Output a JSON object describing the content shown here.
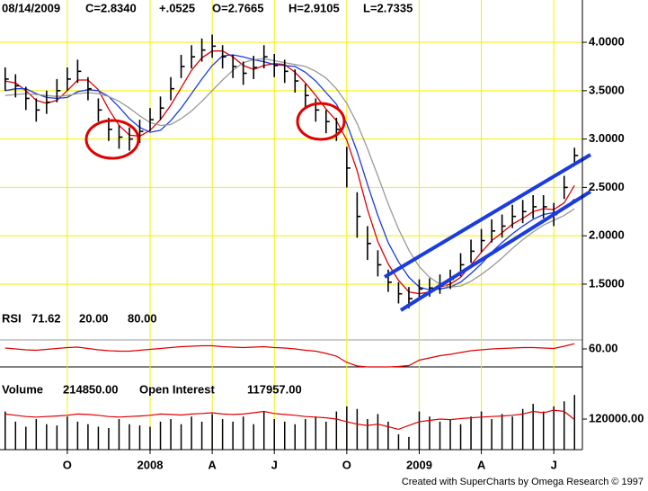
{
  "chart_data": [
    {
      "type": "ohlc",
      "header": [
        "08/14/2009",
        "C=2.8340",
        "+.0525",
        "O=2.7665",
        "H=2.9105",
        "L=2.7335"
      ],
      "header_colors": [
        "#000000",
        "#000000",
        "#00c000",
        "#000000",
        "#000000",
        "#000000"
      ],
      "color": "#000000",
      "high": [
        3.74,
        3.67,
        3.54,
        3.42,
        3.5,
        3.62,
        3.74,
        3.82,
        3.64,
        3.42,
        3.22,
        3.14,
        3.12,
        3.2,
        3.32,
        3.44,
        3.64,
        3.87,
        3.97,
        4.04,
        4.08,
        3.97,
        3.87,
        3.8,
        3.86,
        3.97,
        3.88,
        3.82,
        3.72,
        3.57,
        3.42,
        3.3,
        3.22,
        2.92,
        2.45,
        2.1,
        1.85,
        1.65,
        1.52,
        1.47,
        1.55,
        1.56,
        1.6,
        1.65,
        1.82,
        1.96,
        2.07,
        2.17,
        2.22,
        2.32,
        2.37,
        2.42,
        2.42,
        2.34,
        2.62,
        2.91
      ],
      "low": [
        3.5,
        3.43,
        3.3,
        3.18,
        3.26,
        3.38,
        3.5,
        3.58,
        3.4,
        3.18,
        2.98,
        2.9,
        2.88,
        2.96,
        3.08,
        3.2,
        3.4,
        3.63,
        3.73,
        3.8,
        3.84,
        3.73,
        3.63,
        3.56,
        3.62,
        3.73,
        3.64,
        3.58,
        3.48,
        3.33,
        3.18,
        3.06,
        2.98,
        2.5,
        1.98,
        1.75,
        1.58,
        1.42,
        1.3,
        1.25,
        1.36,
        1.37,
        1.4,
        1.45,
        1.58,
        1.72,
        1.83,
        1.93,
        1.98,
        2.08,
        2.13,
        2.18,
        2.18,
        2.1,
        2.38,
        2.73
      ],
      "close": [
        3.62,
        3.55,
        3.42,
        3.3,
        3.38,
        3.5,
        3.62,
        3.7,
        3.52,
        3.3,
        3.1,
        3.02,
        3.0,
        3.08,
        3.2,
        3.32,
        3.52,
        3.75,
        3.85,
        3.92,
        3.96,
        3.85,
        3.75,
        3.68,
        3.74,
        3.85,
        3.76,
        3.7,
        3.6,
        3.45,
        3.3,
        3.18,
        3.1,
        2.7,
        2.2,
        1.92,
        1.7,
        1.52,
        1.4,
        1.35,
        1.45,
        1.46,
        1.5,
        1.55,
        1.7,
        1.84,
        1.95,
        2.05,
        2.1,
        2.2,
        2.25,
        2.3,
        2.3,
        2.22,
        2.5,
        2.83
      ],
      "moving_averages": [
        {
          "color": "#e00000",
          "values": [
            3.6,
            3.58,
            3.5,
            3.4,
            3.37,
            3.4,
            3.5,
            3.61,
            3.61,
            3.51,
            3.31,
            3.14,
            3.04,
            3.03,
            3.09,
            3.2,
            3.35,
            3.53,
            3.71,
            3.84,
            3.91,
            3.91,
            3.85,
            3.76,
            3.72,
            3.76,
            3.78,
            3.77,
            3.69,
            3.58,
            3.45,
            3.31,
            3.19,
            2.99,
            2.67,
            2.27,
            1.94,
            1.71,
            1.54,
            1.42,
            1.4,
            1.42,
            1.47,
            1.5,
            1.57,
            1.7,
            1.83,
            1.95,
            2.03,
            2.12,
            2.18,
            2.25,
            2.28,
            2.27,
            2.34,
            2.52
          ]
        },
        {
          "color": "#1a3ce0",
          "values": [
            3.5,
            3.52,
            3.52,
            3.47,
            3.43,
            3.42,
            3.43,
            3.49,
            3.51,
            3.5,
            3.44,
            3.33,
            3.21,
            3.12,
            3.07,
            3.09,
            3.19,
            3.32,
            3.47,
            3.62,
            3.76,
            3.86,
            3.87,
            3.85,
            3.82,
            3.8,
            3.77,
            3.76,
            3.75,
            3.69,
            3.6,
            3.48,
            3.36,
            3.16,
            2.87,
            2.53,
            2.21,
            1.93,
            1.73,
            1.57,
            1.47,
            1.44,
            1.45,
            1.47,
            1.52,
            1.61,
            1.71,
            1.83,
            1.93,
            2.02,
            2.1,
            2.17,
            2.22,
            2.24,
            2.28,
            2.38
          ]
        },
        {
          "color": "#999999",
          "values": [
            3.45,
            3.46,
            3.47,
            3.46,
            3.45,
            3.44,
            3.45,
            3.47,
            3.48,
            3.47,
            3.44,
            3.39,
            3.32,
            3.24,
            3.17,
            3.14,
            3.15,
            3.21,
            3.29,
            3.39,
            3.5,
            3.61,
            3.71,
            3.79,
            3.82,
            3.83,
            3.81,
            3.79,
            3.77,
            3.75,
            3.7,
            3.63,
            3.52,
            3.37,
            3.16,
            2.9,
            2.62,
            2.33,
            2.07,
            1.85,
            1.68,
            1.57,
            1.5,
            1.47,
            1.48,
            1.53,
            1.6,
            1.68,
            1.77,
            1.87,
            1.96,
            2.04,
            2.11,
            2.16,
            2.21,
            2.28
          ]
        }
      ],
      "ylim": [
        1.23,
        4.27
      ],
      "yticks": [
        {
          "value": 1.5,
          "label": "1.5000"
        },
        {
          "value": 2,
          "label": "2.0000"
        },
        {
          "value": 2.5,
          "label": "2.5000"
        },
        {
          "value": 3,
          "label": "3.0000"
        },
        {
          "value": 3.5,
          "label": "3.5000"
        },
        {
          "value": 4,
          "label": "4.0000"
        }
      ],
      "grid": true
    },
    {
      "type": "line",
      "title": "RSI",
      "current": {
        "value": 71.62,
        "label": "71.62"
      },
      "current_color": "#e00000",
      "levels": [
        {
          "value": 20,
          "label": "20.00",
          "color": "#000000"
        },
        {
          "value": 80,
          "label": "80.00",
          "color": "#999999"
        }
      ],
      "color": "#e00000",
      "values": [
        62,
        60,
        58,
        57,
        59,
        61,
        63,
        64,
        61,
        58,
        56,
        55,
        55,
        57,
        59,
        61,
        63,
        65,
        66,
        67,
        67,
        65,
        64,
        63,
        64,
        65,
        63,
        62,
        60,
        57,
        55,
        50,
        44,
        30,
        22,
        20,
        20,
        20,
        21,
        23,
        35,
        40,
        45,
        48,
        52,
        56,
        58,
        60,
        61,
        62,
        63,
        63,
        62,
        61,
        66,
        71.62
      ],
      "ylim": [
        -14,
        146
      ],
      "yticks": [
        {
          "value": 60,
          "label": "60.00"
        }
      ]
    },
    {
      "type": "bar",
      "title": "Volume",
      "current": {
        "value": 214850,
        "label": "214850.00"
      },
      "current_color": "#000000",
      "color": "#000000",
      "values": [
        150000,
        110000,
        90000,
        120000,
        100000,
        95000,
        130000,
        110000,
        100000,
        90000,
        85000,
        120000,
        100000,
        95000,
        90000,
        110000,
        120000,
        100000,
        130000,
        110000,
        140000,
        120000,
        110000,
        130000,
        100000,
        150000,
        120000,
        110000,
        100000,
        120000,
        130000,
        110000,
        150000,
        170000,
        160000,
        120000,
        140000,
        110000,
        60000,
        50000,
        150000,
        130000,
        110000,
        120000,
        100000,
        130000,
        150000,
        120000,
        140000,
        130000,
        160000,
        180000,
        150000,
        170000,
        190000,
        214850
      ],
      "series": [
        {
          "name": "Open Interest",
          "color": "#e00000",
          "current": {
            "value": 117957,
            "label": "117957.00"
          },
          "values": [
            140000,
            135000,
            130000,
            128000,
            130000,
            132000,
            135000,
            140000,
            138000,
            135000,
            130000,
            128000,
            130000,
            132000,
            135000,
            140000,
            138000,
            136000,
            140000,
            142000,
            145000,
            140000,
            138000,
            140000,
            145000,
            150000,
            142000,
            138000,
            135000,
            130000,
            128000,
            125000,
            120000,
            110000,
            100000,
            95000,
            100000,
            90000,
            80000,
            95000,
            110000,
            115000,
            120000,
            118000,
            122000,
            125000,
            128000,
            130000,
            132000,
            135000,
            140000,
            150000,
            145000,
            155000,
            150000,
            117957
          ]
        }
      ],
      "categories": [
        null,
        null,
        null,
        null,
        null,
        null,
        "O",
        null,
        null,
        null,
        null,
        null,
        null,
        null,
        "2008",
        null,
        null,
        null,
        null,
        null,
        "A",
        null,
        null,
        null,
        null,
        null,
        "J",
        null,
        null,
        null,
        null,
        null,
        null,
        "O",
        null,
        null,
        null,
        null,
        null,
        null,
        "2009",
        null,
        null,
        null,
        null,
        null,
        "A",
        null,
        null,
        null,
        null,
        null,
        null,
        "J",
        null,
        null
      ],
      "ylim": [
        0,
        265000
      ],
      "yticks": [
        {
          "value": 120000,
          "label": "120000.00"
        }
      ]
    }
  ],
  "credit": "Created with SuperCharts by Omega Research © 1997"
}
